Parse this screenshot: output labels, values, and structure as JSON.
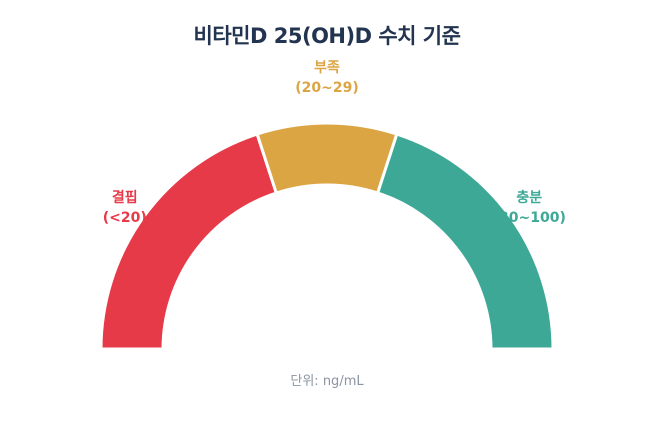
{
  "chart_data": {
    "type": "gauge",
    "title": "비타민D 25(OH)D 수치 기준",
    "unit_note": "단위: ng/mL",
    "segments": [
      {
        "name": "결핍",
        "range_label": "(<20)",
        "color": "#e63a48",
        "sweep_deg": 72
      },
      {
        "name": "부족",
        "range_label": "(20~29)",
        "color": "#dca544",
        "sweep_deg": 36
      },
      {
        "name": "충분",
        "range_label": "(30~100)",
        "color": "#3ea897",
        "sweep_deg": 72
      }
    ]
  }
}
